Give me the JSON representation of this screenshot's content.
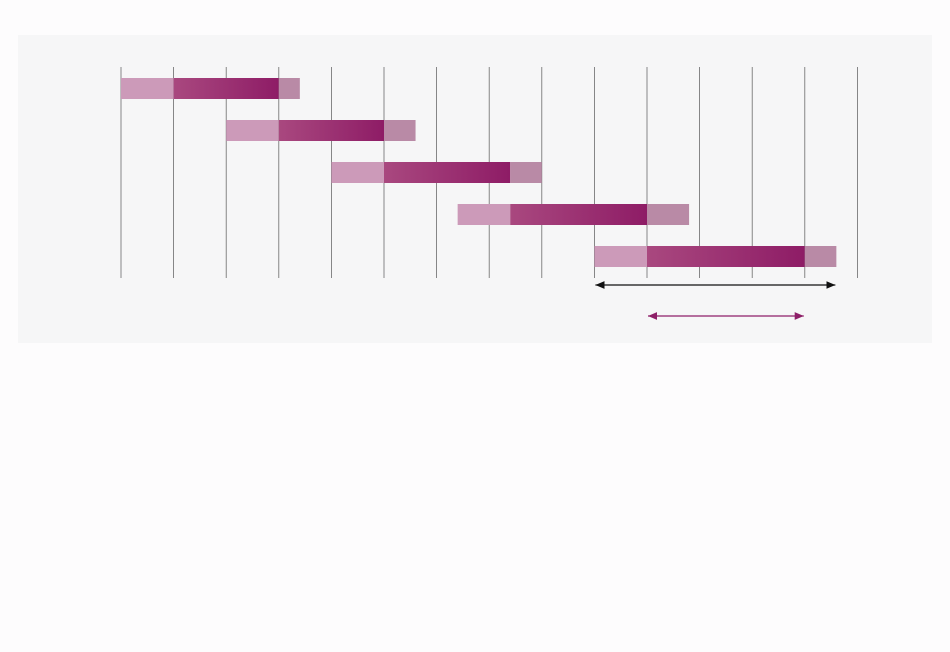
{
  "chart_data": {
    "type": "gantt",
    "title": "",
    "xlabel": "",
    "ylabel": "",
    "xlim": [
      0,
      14
    ],
    "grid_x": [
      0,
      1,
      2,
      3,
      4,
      5,
      6,
      7,
      8,
      9,
      10,
      11,
      12,
      13,
      14
    ],
    "rows": [
      {
        "segments": [
          {
            "phase": "setup",
            "start": 0,
            "end": 1
          },
          {
            "phase": "main",
            "start": 1,
            "end": 3
          },
          {
            "phase": "tail",
            "start": 3,
            "end": 3.4
          }
        ]
      },
      {
        "segments": [
          {
            "phase": "setup",
            "start": 2,
            "end": 3
          },
          {
            "phase": "main",
            "start": 3,
            "end": 5
          },
          {
            "phase": "tail",
            "start": 5,
            "end": 5.6
          }
        ]
      },
      {
        "segments": [
          {
            "phase": "setup",
            "start": 4,
            "end": 5
          },
          {
            "phase": "main",
            "start": 5,
            "end": 7.4
          },
          {
            "phase": "tail",
            "start": 7.4,
            "end": 8
          }
        ]
      },
      {
        "segments": [
          {
            "phase": "setup",
            "start": 6.4,
            "end": 7.4
          },
          {
            "phase": "main",
            "start": 7.4,
            "end": 10
          },
          {
            "phase": "tail",
            "start": 10,
            "end": 10.8
          }
        ]
      },
      {
        "segments": [
          {
            "phase": "setup",
            "start": 9,
            "end": 10
          },
          {
            "phase": "main",
            "start": 10,
            "end": 13
          },
          {
            "phase": "tail",
            "start": 13,
            "end": 13.6
          }
        ]
      }
    ],
    "spans": [
      {
        "start": 9,
        "end": 13.6,
        "color": "#111111"
      },
      {
        "start": 10,
        "end": 13,
        "color": "#8e1f68"
      }
    ],
    "colors": {
      "setup": "#cc9ab9",
      "main_start": "#a9487f",
      "main_end": "#8e1c66",
      "tail": "#b98aa6",
      "grid": "#6b6b6b",
      "panel": "#f6f6f7"
    }
  }
}
